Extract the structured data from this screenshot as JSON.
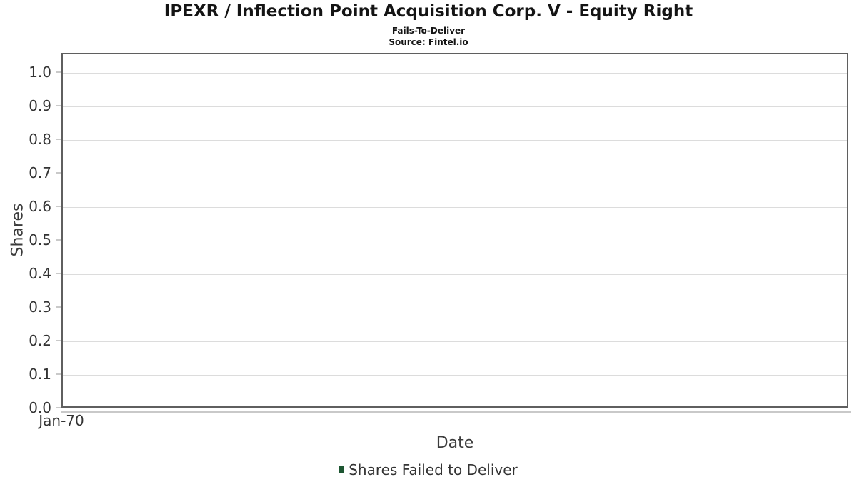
{
  "chart_data": {
    "type": "bar",
    "title": "IPEXR / Inflection Point Acquisition Corp. V - Equity Right",
    "subtitle": "Fails-To-Deliver",
    "source": "Source: Fintel.io",
    "xlabel": "Date",
    "ylabel": "Shares",
    "x_ticks": [
      "Jan-70"
    ],
    "y_ticks": [
      "1.0",
      "0.9",
      "0.8",
      "0.7",
      "0.6",
      "0.5",
      "0.4",
      "0.3",
      "0.2",
      "0.1",
      "0.0"
    ],
    "ylim": [
      0.0,
      1.05
    ],
    "grid": true,
    "legend_position": "bottom",
    "series": [
      {
        "name": "Shares Failed to Deliver",
        "color": "#1d5632",
        "x": [],
        "values": []
      }
    ]
  },
  "colors": {
    "frame": "#5f5f5f",
    "gridline": "#dcdcdc",
    "tick": "#c9c9c9",
    "title_text": "#141414",
    "tick_text": "#333333",
    "axis_label_text": "#3c3c3c",
    "legend_text": "#333333",
    "series_green": "#1d5632",
    "background": "#ffffff"
  }
}
